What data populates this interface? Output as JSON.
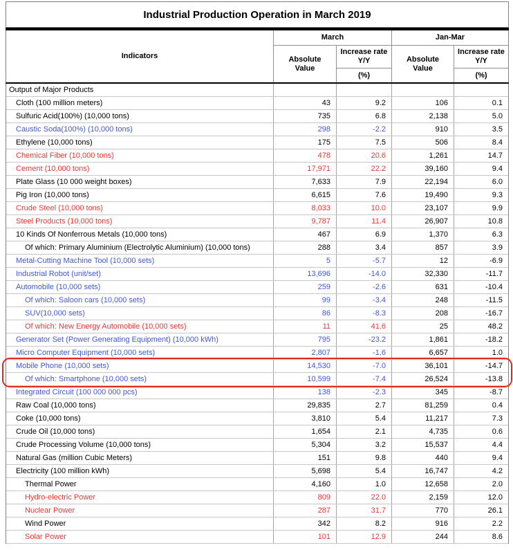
{
  "title": "Industrial Production Operation in March 2019",
  "header": {
    "indicators_label": "Indicators",
    "march_label": "March",
    "janmar_label": "Jan-Mar",
    "absolute_value_label": "Absolute Value",
    "increase_rate_label": "Increase rate Y/Y",
    "percent_label": "(%)"
  },
  "colors": {
    "blue_text": "#4156d6",
    "red_text": "#ee3430",
    "black_text": "#000000",
    "highlight_box": "#e5261b"
  },
  "rows": [
    {
      "label": "Output of Major Products",
      "indent": 0,
      "color": "black",
      "highlight": false,
      "values": [
        "",
        "",
        "",
        ""
      ]
    },
    {
      "label": "Cloth (100 million meters)",
      "indent": 1,
      "color": "black",
      "highlight": false,
      "values": [
        "43",
        "9.2",
        "106",
        "0.1"
      ]
    },
    {
      "label": "Sulfuric Acid(100%) (10,000 tons)",
      "indent": 1,
      "color": "black",
      "highlight": false,
      "values": [
        "735",
        "6.8",
        "2,138",
        "5.0"
      ]
    },
    {
      "label": "Caustic Soda(100%) (10,000 tons)",
      "indent": 1,
      "color": "blue",
      "highlight": false,
      "values": [
        "298",
        "-2.2",
        "910",
        "3.5"
      ]
    },
    {
      "label": "Ethylene (10,000 tons)",
      "indent": 1,
      "color": "black",
      "highlight": false,
      "values": [
        "175",
        "7.5",
        "506",
        "8.4"
      ]
    },
    {
      "label": "Chemical Fiber (10,000 tons)",
      "indent": 1,
      "color": "red",
      "highlight": false,
      "values": [
        "478",
        "20.6",
        "1,261",
        "14.7"
      ]
    },
    {
      "label": "Cement (10,000 tons)",
      "indent": 1,
      "color": "red",
      "highlight": false,
      "values": [
        "17,971",
        "22.2",
        "39,160",
        "9.4"
      ]
    },
    {
      "label": "Plate Glass (10 000 weight boxes)",
      "indent": 1,
      "color": "black",
      "highlight": false,
      "values": [
        "7,633",
        "7.9",
        "22,194",
        "6.0"
      ]
    },
    {
      "label": "Pig Iron (10,000 tons)",
      "indent": 1,
      "color": "black",
      "highlight": false,
      "values": [
        "6,615",
        "7.6",
        "19,490",
        "9.3"
      ]
    },
    {
      "label": "Crude Steel (10,000 tons)",
      "indent": 1,
      "color": "red",
      "highlight": false,
      "values": [
        "8,033",
        "10.0",
        "23,107",
        "9.9"
      ]
    },
    {
      "label": "Steel Products (10,000 tons)",
      "indent": 1,
      "color": "red",
      "highlight": false,
      "values": [
        "9,787",
        "11.4",
        "26,907",
        "10.8"
      ]
    },
    {
      "label": "10 Kinds Of Nonferrous Metals (10,000 tons)",
      "indent": 1,
      "color": "black",
      "highlight": false,
      "values": [
        "467",
        "6.9",
        "1,370",
        "6.3"
      ]
    },
    {
      "label": "Of which: Primary Aluminium (Electrolytic Aluminium) (10,000 tons)",
      "indent": 2,
      "color": "black",
      "highlight": false,
      "values": [
        "288",
        "3.4",
        "857",
        "3.9"
      ]
    },
    {
      "label": "Metal-Cutting Machine Tool (10,000 sets)",
      "indent": 1,
      "color": "blue",
      "highlight": false,
      "values": [
        "5",
        "-5.7",
        "12",
        "-6.9"
      ]
    },
    {
      "label": "Industrial Robot (unit/set)",
      "indent": 1,
      "color": "blue",
      "highlight": false,
      "values": [
        "13,696",
        "-14.0",
        "32,330",
        "-11.7"
      ]
    },
    {
      "label": "Automobile (10,000 sets)",
      "indent": 1,
      "color": "blue",
      "highlight": false,
      "values": [
        "259",
        "-2.6",
        "631",
        "-10.4"
      ]
    },
    {
      "label": "Of which: Saloon cars (10,000 sets)",
      "indent": 2,
      "color": "blue",
      "highlight": false,
      "values": [
        "99",
        "-3.4",
        "248",
        "-11.5"
      ]
    },
    {
      "label": "SUV(10,000 sets)",
      "indent": 2,
      "color": "blue",
      "highlight": false,
      "values": [
        "86",
        "-8.3",
        "208",
        "-16.7"
      ]
    },
    {
      "label": "Of which: New Energy Automobile (10,000 sets)",
      "indent": 2,
      "color": "red",
      "highlight": false,
      "values": [
        "11",
        "41.6",
        "25",
        "48.2"
      ]
    },
    {
      "label": "Generator Set (Power Generating Equipment) (10,000 kWh)",
      "indent": 1,
      "color": "blue",
      "highlight": false,
      "values": [
        "795",
        "-23.2",
        "1,861",
        "-18.2"
      ]
    },
    {
      "label": "Micro Computer Equipment (10,000 sets)",
      "indent": 1,
      "color": "blue",
      "highlight": false,
      "values": [
        "2,807",
        "-1.6",
        "6,657",
        "1.0"
      ]
    },
    {
      "label": "Mobile Phone (10,000 sets)",
      "indent": 1,
      "color": "blue",
      "highlight": true,
      "values": [
        "14,530",
        "-7.0",
        "36,101",
        "-14.7"
      ]
    },
    {
      "label": "Of which: Smartphone (10,000 sets)",
      "indent": 2,
      "color": "blue",
      "highlight": true,
      "values": [
        "10,599",
        "-7.4",
        "26,524",
        "-13.8"
      ]
    },
    {
      "label": "Integrated Circuit (100 000 000 pcs)",
      "indent": 1,
      "color": "blue",
      "highlight": false,
      "values": [
        "138",
        "-2.3",
        "345",
        "-8.7"
      ]
    },
    {
      "label": "Raw Coal (10,000 tons)",
      "indent": 1,
      "color": "black",
      "highlight": false,
      "values": [
        "29,835",
        "2.7",
        "81,259",
        "0.4"
      ]
    },
    {
      "label": "Coke (10,000 tons)",
      "indent": 1,
      "color": "black",
      "highlight": false,
      "values": [
        "3,810",
        "5.4",
        "11,217",
        "7.3"
      ]
    },
    {
      "label": "Crude Oil (10,000 tons)",
      "indent": 1,
      "color": "black",
      "highlight": false,
      "values": [
        "1,654",
        "2.1",
        "4,735",
        "0.6"
      ]
    },
    {
      "label": "Crude Processing Volume (10,000 tons)",
      "indent": 1,
      "color": "black",
      "highlight": false,
      "values": [
        "5,304",
        "3.2",
        "15,537",
        "4.4"
      ]
    },
    {
      "label": "Natural Gas (million Cubic Meters)",
      "indent": 1,
      "color": "black",
      "highlight": false,
      "values": [
        "151",
        "9.8",
        "440",
        "9.4"
      ]
    },
    {
      "label": "Electricity (100 million kWh)",
      "indent": 1,
      "color": "black",
      "highlight": false,
      "values": [
        "5,698",
        "5.4",
        "16,747",
        "4.2"
      ]
    },
    {
      "label": "Thermal Power",
      "indent": 2,
      "color": "black",
      "highlight": false,
      "values": [
        "4,160",
        "1.0",
        "12,658",
        "2.0"
      ]
    },
    {
      "label": "Hydro-electric Power",
      "indent": 2,
      "color": "red",
      "highlight": false,
      "values": [
        "809",
        "22.0",
        "2,159",
        "12.0"
      ]
    },
    {
      "label": "Nuclear Power",
      "indent": 2,
      "color": "red",
      "highlight": false,
      "values": [
        "287",
        "31.7",
        "770",
        "26.1"
      ]
    },
    {
      "label": "Wind Power",
      "indent": 2,
      "color": "black",
      "highlight": false,
      "values": [
        "342",
        "8.2",
        "916",
        "2.2"
      ]
    },
    {
      "label": "Solar Power",
      "indent": 2,
      "color": "red",
      "highlight": false,
      "values": [
        "101",
        "12.9",
        "244",
        "8.6"
      ]
    }
  ]
}
